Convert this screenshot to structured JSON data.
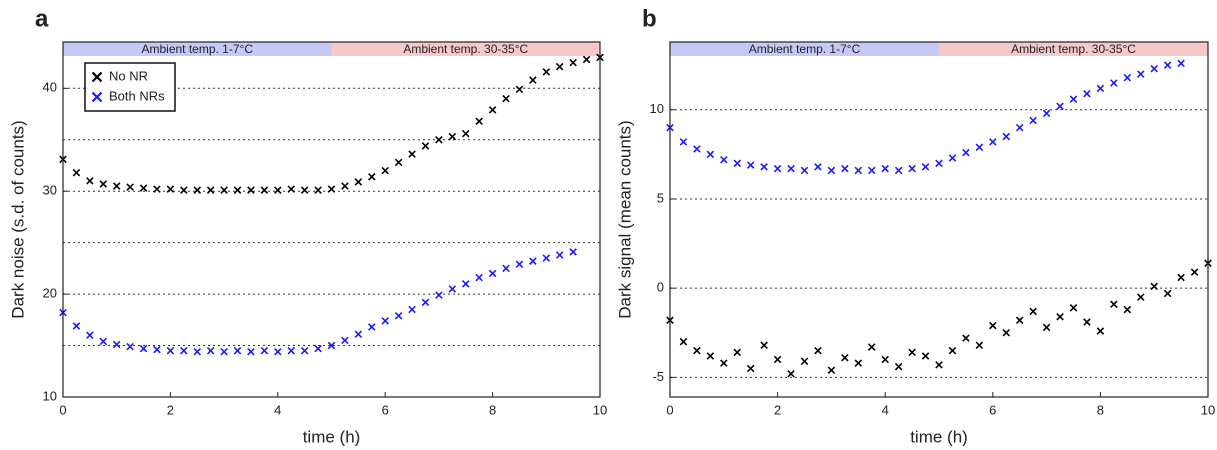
{
  "chart_data": [
    {
      "type": "scatter",
      "panel_label": "a",
      "xlabel": "time (h)",
      "ylabel": "Dark noise (s.d. of counts)",
      "xlim": [
        0,
        10
      ],
      "ylim": [
        10,
        44.5
      ],
      "xticks": [
        0,
        2,
        4,
        6,
        8,
        10
      ],
      "yticks": [
        10,
        20,
        30,
        40
      ],
      "grid_lines": [
        15,
        20,
        25,
        30,
        35,
        40
      ],
      "legend": "upper left",
      "bands": [
        {
          "label": "Ambient temp. 1-7°C",
          "start": 0,
          "end": 5,
          "color": "#c8c8f6"
        },
        {
          "label": "Ambient temp. 30-35°C",
          "start": 5,
          "end": 10,
          "color": "#f6c8c8"
        }
      ],
      "series": [
        {
          "name": "No NR",
          "color": "#000000",
          "x": [
            0,
            0.25,
            0.5,
            0.75,
            1,
            1.25,
            1.5,
            1.75,
            2,
            2.25,
            2.5,
            2.75,
            3,
            3.25,
            3.5,
            3.75,
            4,
            4.25,
            4.5,
            4.75,
            5,
            5.25,
            5.5,
            5.75,
            6,
            6.25,
            6.5,
            6.75,
            7,
            7.25,
            7.5,
            7.75,
            8,
            8.25,
            8.5,
            8.75,
            9,
            9.25,
            9.5,
            9.75,
            10
          ],
          "values": [
            33.1,
            31.8,
            31.0,
            30.7,
            30.5,
            30.4,
            30.3,
            30.2,
            30.2,
            30.1,
            30.1,
            30.1,
            30.1,
            30.1,
            30.1,
            30.1,
            30.1,
            30.2,
            30.1,
            30.1,
            30.2,
            30.5,
            30.9,
            31.4,
            32.0,
            32.8,
            33.6,
            34.4,
            35.0,
            35.3,
            35.6,
            36.8,
            37.9,
            39.0,
            39.9,
            40.8,
            41.6,
            42.1,
            42.5,
            42.8,
            43.0
          ]
        },
        {
          "name": "Both NRs",
          "color": "#1a1aff",
          "x": [
            0,
            0.25,
            0.5,
            0.75,
            1,
            1.25,
            1.5,
            1.75,
            2,
            2.25,
            2.5,
            2.75,
            3,
            3.25,
            3.5,
            3.75,
            4,
            4.25,
            4.5,
            4.75,
            5,
            5.25,
            5.5,
            5.75,
            6,
            6.25,
            6.5,
            6.75,
            7,
            7.25,
            7.5,
            7.75,
            8,
            8.25,
            8.5,
            8.75,
            9,
            9.25,
            9.5
          ],
          "values": [
            18.2,
            16.9,
            16.0,
            15.4,
            15.1,
            14.9,
            14.7,
            14.6,
            14.5,
            14.5,
            14.4,
            14.5,
            14.4,
            14.5,
            14.4,
            14.5,
            14.4,
            14.5,
            14.5,
            14.7,
            15.0,
            15.5,
            16.1,
            16.8,
            17.4,
            17.9,
            18.5,
            19.2,
            19.9,
            20.5,
            21.0,
            21.6,
            22.0,
            22.5,
            22.9,
            23.2,
            23.5,
            23.8,
            24.1
          ]
        }
      ]
    },
    {
      "type": "scatter",
      "panel_label": "b",
      "xlabel": "time (h)",
      "ylabel": "Dark signal (mean counts)",
      "xlim": [
        0,
        10
      ],
      "ylim": [
        -6.1,
        13.8
      ],
      "xticks": [
        0,
        2,
        4,
        6,
        8,
        10
      ],
      "yticks": [
        -5,
        0,
        5,
        10
      ],
      "grid_lines": [
        -5,
        0,
        5,
        10
      ],
      "bands": [
        {
          "label": "Ambient temp. 1-7°C",
          "start": 0,
          "end": 5,
          "color": "#c8c8f6"
        },
        {
          "label": "Ambient temp. 30-35°C",
          "start": 5,
          "end": 10,
          "color": "#f6c8c8"
        }
      ],
      "series": [
        {
          "color": "#1a1aff",
          "x": [
            0,
            0.25,
            0.5,
            0.75,
            1,
            1.25,
            1.5,
            1.75,
            2,
            2.25,
            2.5,
            2.75,
            3,
            3.25,
            3.5,
            3.75,
            4,
            4.25,
            4.5,
            4.75,
            5,
            5.25,
            5.5,
            5.75,
            6,
            6.25,
            6.5,
            6.75,
            7,
            7.25,
            7.5,
            7.75,
            8,
            8.25,
            8.5,
            8.75,
            9,
            9.25,
            9.5
          ],
          "values": [
            9.0,
            8.2,
            7.8,
            7.5,
            7.2,
            7.0,
            6.9,
            6.8,
            6.7,
            6.7,
            6.6,
            6.8,
            6.6,
            6.7,
            6.6,
            6.6,
            6.7,
            6.6,
            6.7,
            6.8,
            7.0,
            7.3,
            7.6,
            7.9,
            8.2,
            8.5,
            9.0,
            9.4,
            9.8,
            10.2,
            10.6,
            10.9,
            11.2,
            11.5,
            11.8,
            12.0,
            12.3,
            12.5,
            12.6
          ]
        },
        {
          "color": "#000000",
          "x": [
            0,
            0.25,
            0.5,
            0.75,
            1,
            1.25,
            1.5,
            1.75,
            2,
            2.25,
            2.5,
            2.75,
            3,
            3.25,
            3.5,
            3.75,
            4,
            4.25,
            4.5,
            4.75,
            5,
            5.25,
            5.5,
            5.75,
            6,
            6.25,
            6.5,
            6.75,
            7,
            7.25,
            7.5,
            7.75,
            8,
            8.25,
            8.5,
            8.75,
            9,
            9.25,
            9.5,
            9.75,
            10
          ],
          "values": [
            -1.8,
            -3.0,
            -3.5,
            -3.8,
            -4.2,
            -3.6,
            -4.5,
            -3.2,
            -4.0,
            -4.8,
            -4.1,
            -3.5,
            -4.6,
            -3.9,
            -4.2,
            -3.3,
            -4.0,
            -4.4,
            -3.6,
            -3.8,
            -4.3,
            -3.5,
            -2.8,
            -3.2,
            -2.1,
            -2.5,
            -1.8,
            -1.3,
            -2.2,
            -1.6,
            -1.1,
            -1.9,
            -2.4,
            -0.9,
            -1.2,
            -0.5,
            0.1,
            -0.3,
            0.6,
            0.9,
            1.4
          ]
        }
      ]
    }
  ]
}
